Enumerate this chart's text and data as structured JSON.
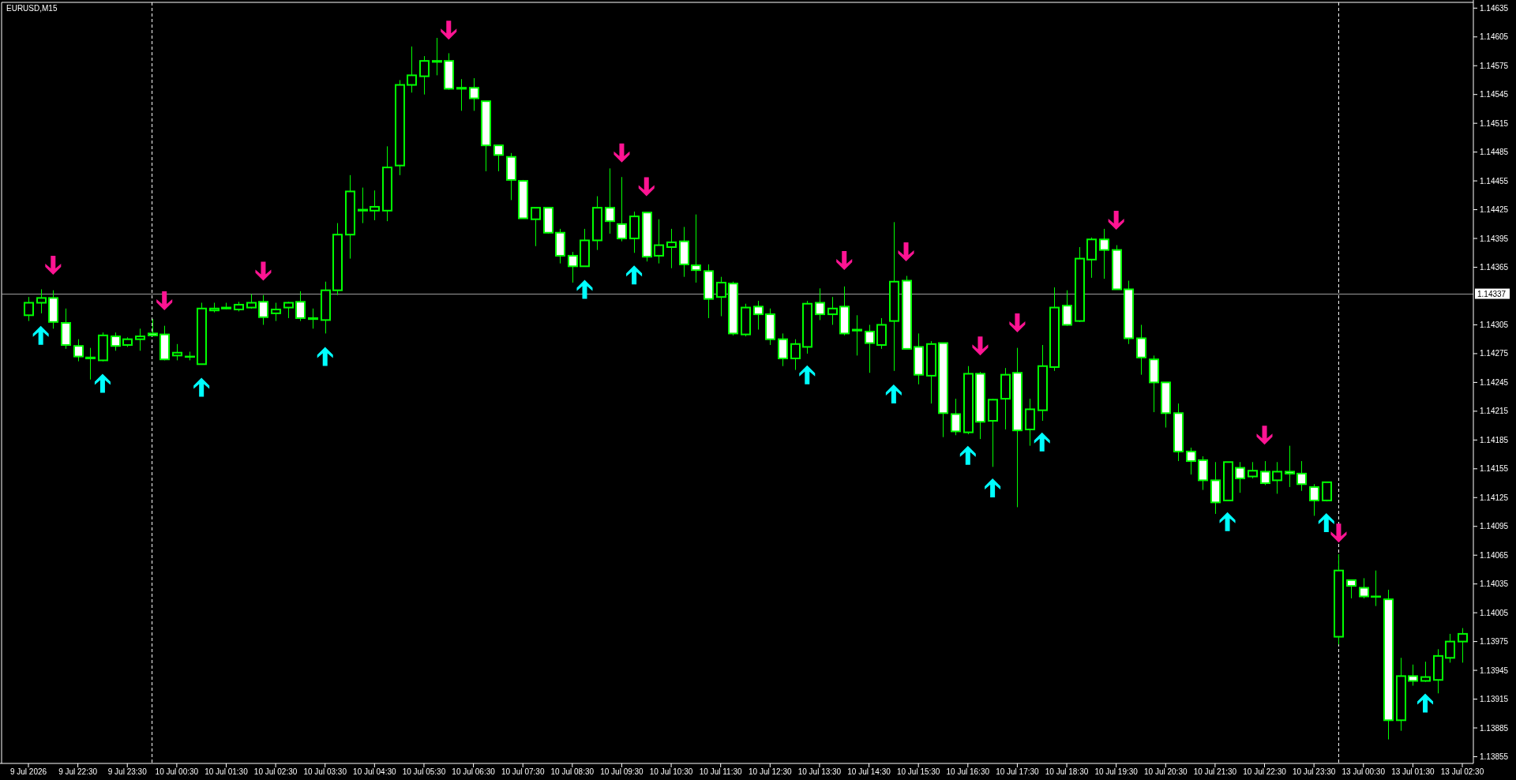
{
  "chart_data": {
    "type": "candlestick",
    "title": "EURUSD,M15",
    "color": "#00ff00",
    "categories": [
      "9 Jul 2026",
      null,
      null,
      null,
      "9 Jul 22:30",
      null,
      null,
      null,
      "9 Jul 23:30",
      null,
      null,
      null,
      "10 Jul 00:30",
      null,
      null,
      null,
      "10 Jul 01:30",
      null,
      null,
      null,
      "10 Jul 02:30",
      null,
      null,
      null,
      "10 Jul 03:30",
      null,
      null,
      null,
      "10 Jul 04:30",
      null,
      null,
      null,
      "10 Jul 05:30",
      null,
      null,
      null,
      "10 Jul 06:30",
      null,
      null,
      null,
      "10 Jul 07:30",
      null,
      null,
      null,
      "10 Jul 08:30",
      null,
      null,
      null,
      "10 Jul 09:30",
      null,
      null,
      null,
      "10 Jul 10:30",
      null,
      null,
      null,
      "10 Jul 11:30",
      null,
      null,
      null,
      "10 Jul 12:30",
      null,
      null,
      null,
      "10 Jul 13:30",
      null,
      null,
      null,
      "10 Jul 14:30",
      null,
      null,
      null,
      "10 Jul 15:30",
      null,
      null,
      null,
      "10 Jul 16:30",
      null,
      null,
      null,
      "10 Jul 17:30",
      null,
      null,
      null,
      "10 Jul 18:30",
      null,
      null,
      null,
      "10 Jul 19:30",
      null,
      null,
      null,
      "10 Jul 20:30",
      null,
      null,
      null,
      "10 Jul 21:30",
      null,
      null,
      null,
      "10 Jul 22:30",
      null,
      null,
      null,
      "10 Jul 23:30",
      null,
      null,
      null,
      "13 Jul 00:30",
      null,
      null,
      null,
      "13 Jul 01:30",
      null,
      null,
      null,
      "13 Jul 02:30"
    ],
    "ohlc": [
      [
        1.14315,
        1.14334,
        1.14309,
        1.14328
      ],
      [
        1.14328,
        1.14342,
        1.14317,
        1.14333
      ],
      [
        1.14333,
        1.14341,
        1.14301,
        1.14308
      ],
      [
        1.14307,
        1.14322,
        1.1428,
        1.14284
      ],
      [
        1.14283,
        1.1429,
        1.14267,
        1.14272
      ],
      [
        1.14271,
        1.14281,
        1.14248,
        1.1427
      ],
      [
        1.14268,
        1.14297,
        1.14267,
        1.14294
      ],
      [
        1.14293,
        1.14297,
        1.14278,
        1.14283
      ],
      [
        1.14284,
        1.14292,
        1.14282,
        1.1429
      ],
      [
        1.1429,
        1.14301,
        1.14278,
        1.14293
      ],
      [
        1.14296,
        1.14311,
        1.14294,
        1.14294
      ],
      [
        1.14295,
        1.14304,
        1.14268,
        1.14269
      ],
      [
        1.14273,
        1.14285,
        1.14268,
        1.14276
      ],
      [
        1.14272,
        1.14277,
        1.14268,
        1.14272
      ],
      [
        1.14264,
        1.14328,
        1.14264,
        1.14322
      ],
      [
        1.1432,
        1.14328,
        1.14318,
        1.14322
      ],
      [
        1.14322,
        1.14328,
        1.14321,
        1.14323
      ],
      [
        1.14321,
        1.14329,
        1.14319,
        1.14326
      ],
      [
        1.14323,
        1.14337,
        1.14322,
        1.14328
      ],
      [
        1.14329,
        1.14336,
        1.14305,
        1.14313
      ],
      [
        1.14317,
        1.14328,
        1.14309,
        1.14321
      ],
      [
        1.14323,
        1.14329,
        1.14312,
        1.14328
      ],
      [
        1.14329,
        1.1434,
        1.14309,
        1.14312
      ],
      [
        1.14312,
        1.14322,
        1.14301,
        1.14311
      ],
      [
        1.1431,
        1.1435,
        1.14296,
        1.14341
      ],
      [
        1.14341,
        1.14411,
        1.14336,
        1.14399
      ],
      [
        1.14399,
        1.14461,
        1.14374,
        1.14444
      ],
      [
        1.14424,
        1.14448,
        1.14411,
        1.14425
      ],
      [
        1.14424,
        1.14445,
        1.14414,
        1.14428
      ],
      [
        1.14424,
        1.14491,
        1.14413,
        1.14469
      ],
      [
        1.14471,
        1.1456,
        1.14461,
        1.14555
      ],
      [
        1.14555,
        1.14595,
        1.14547,
        1.14565
      ],
      [
        1.14564,
        1.14585,
        1.14545,
        1.1458
      ],
      [
        1.14579,
        1.14604,
        1.14565,
        1.1458
      ],
      [
        1.1458,
        1.14588,
        1.1455,
        1.14551
      ],
      [
        1.14552,
        1.14561,
        1.14528,
        1.14551
      ],
      [
        1.14552,
        1.14562,
        1.14528,
        1.14541
      ],
      [
        1.14538,
        1.14538,
        1.14465,
        1.14492
      ],
      [
        1.14492,
        1.14492,
        1.14465,
        1.14482
      ],
      [
        1.1448,
        1.14484,
        1.14435,
        1.14456
      ],
      [
        1.14455,
        1.14456,
        1.14416,
        1.14416
      ],
      [
        1.14415,
        1.14427,
        1.14387,
        1.14427
      ],
      [
        1.14427,
        1.14427,
        1.144,
        1.14401
      ],
      [
        1.14401,
        1.14405,
        1.14369,
        1.14377
      ],
      [
        1.14377,
        1.14381,
        1.14349,
        1.14366
      ],
      [
        1.14366,
        1.14405,
        1.14366,
        1.14393
      ],
      [
        1.14393,
        1.14439,
        1.14383,
        1.14427
      ],
      [
        1.14427,
        1.14468,
        1.144,
        1.14413
      ],
      [
        1.1441,
        1.14459,
        1.14392,
        1.14395
      ],
      [
        1.14395,
        1.14423,
        1.1438,
        1.14418
      ],
      [
        1.14422,
        1.14422,
        1.14371,
        1.14376
      ],
      [
        1.14377,
        1.14415,
        1.14369,
        1.14388
      ],
      [
        1.14386,
        1.14405,
        1.14364,
        1.14391
      ],
      [
        1.14392,
        1.14407,
        1.14355,
        1.14368
      ],
      [
        1.14367,
        1.1442,
        1.14349,
        1.14362
      ],
      [
        1.14361,
        1.14368,
        1.14312,
        1.14332
      ],
      [
        1.14334,
        1.14355,
        1.14314,
        1.14349
      ],
      [
        1.14348,
        1.1435,
        1.14294,
        1.14296
      ],
      [
        1.14295,
        1.14327,
        1.14293,
        1.14323
      ],
      [
        1.14324,
        1.1433,
        1.143,
        1.14316
      ],
      [
        1.14316,
        1.14322,
        1.14284,
        1.1429
      ],
      [
        1.1429,
        1.14296,
        1.14262,
        1.1427
      ],
      [
        1.1427,
        1.1429,
        1.14258,
        1.14285
      ],
      [
        1.14282,
        1.1433,
        1.14275,
        1.14327
      ],
      [
        1.14328,
        1.14343,
        1.1431,
        1.14316
      ],
      [
        1.14316,
        1.14334,
        1.14305,
        1.14322
      ],
      [
        1.14324,
        1.14345,
        1.14294,
        1.14296
      ],
      [
        1.14299,
        1.14315,
        1.14273,
        1.143
      ],
      [
        1.14298,
        1.14305,
        1.14255,
        1.14286
      ],
      [
        1.14284,
        1.14312,
        1.1428,
        1.14305
      ],
      [
        1.14309,
        1.14412,
        1.14257,
        1.1435
      ],
      [
        1.14351,
        1.14356,
        1.1428,
        1.1428
      ],
      [
        1.14282,
        1.14296,
        1.14243,
        1.14253
      ],
      [
        1.14252,
        1.14288,
        1.14223,
        1.14285
      ],
      [
        1.14286,
        1.14286,
        1.14188,
        1.14213
      ],
      [
        1.14212,
        1.14228,
        1.1419,
        1.14194
      ],
      [
        1.14193,
        1.14262,
        1.14191,
        1.14254
      ],
      [
        1.14254,
        1.14256,
        1.14186,
        1.14204
      ],
      [
        1.14205,
        1.14228,
        1.14157,
        1.14227
      ],
      [
        1.14228,
        1.1426,
        1.14196,
        1.14253
      ],
      [
        1.14255,
        1.14281,
        1.14115,
        1.14195
      ],
      [
        1.14196,
        1.14228,
        1.14179,
        1.14217
      ],
      [
        1.14216,
        1.14284,
        1.14205,
        1.14262
      ],
      [
        1.14261,
        1.14344,
        1.14257,
        1.14323
      ],
      [
        1.14325,
        1.14341,
        1.14304,
        1.14305
      ],
      [
        1.14309,
        1.14386,
        1.14308,
        1.14374
      ],
      [
        1.14373,
        1.14396,
        1.14354,
        1.14394
      ],
      [
        1.14394,
        1.14405,
        1.14353,
        1.14383
      ],
      [
        1.14383,
        1.14388,
        1.14342,
        1.14342
      ],
      [
        1.14342,
        1.14351,
        1.14285,
        1.14291
      ],
      [
        1.14291,
        1.14305,
        1.14253,
        1.14271
      ],
      [
        1.14269,
        1.14273,
        1.14214,
        1.14245
      ],
      [
        1.14245,
        1.14245,
        1.14198,
        1.14213
      ],
      [
        1.14213,
        1.14223,
        1.14163,
        1.14173
      ],
      [
        1.14173,
        1.14177,
        1.14149,
        1.14163
      ],
      [
        1.14164,
        1.14168,
        1.14133,
        1.14143
      ],
      [
        1.14143,
        1.14162,
        1.14108,
        1.1412
      ],
      [
        1.14122,
        1.14162,
        1.14122,
        1.14162
      ],
      [
        1.14156,
        1.14162,
        1.1413,
        1.14145
      ],
      [
        1.14147,
        1.14162,
        1.14145,
        1.14153
      ],
      [
        1.14152,
        1.14163,
        1.14138,
        1.1414
      ],
      [
        1.14143,
        1.14162,
        1.14129,
        1.14152
      ],
      [
        1.14152,
        1.14179,
        1.14136,
        1.1415
      ],
      [
        1.1415,
        1.14163,
        1.14132,
        1.14139
      ],
      [
        1.14136,
        1.14139,
        1.14106,
        1.14122
      ],
      [
        1.14122,
        1.14141,
        1.14121,
        1.14141
      ],
      [
        1.1398,
        1.14066,
        1.13972,
        1.14049
      ],
      [
        1.14039,
        1.14039,
        1.1402,
        1.14033
      ],
      [
        1.14031,
        1.14041,
        1.1402,
        1.14022
      ],
      [
        1.14022,
        1.14049,
        1.14012,
        1.14022
      ],
      [
        1.14019,
        1.14029,
        1.13873,
        1.13893
      ],
      [
        1.13893,
        1.13958,
        1.13882,
        1.13939
      ],
      [
        1.13939,
        1.13951,
        1.13929,
        1.13934
      ],
      [
        1.13934,
        1.13954,
        1.13933,
        1.13938
      ],
      [
        1.13935,
        1.13967,
        1.13921,
        1.1396
      ],
      [
        1.13958,
        1.13983,
        1.13953,
        1.13975
      ],
      [
        1.13975,
        1.13989,
        1.13953,
        1.13983
      ]
    ],
    "series": [
      {
        "type": "scatter",
        "color": "#00ffff",
        "values": [
          null,
          1.14294,
          null,
          null,
          null,
          null,
          1.14244,
          null,
          null,
          null,
          null,
          null,
          null,
          null,
          1.1424,
          null,
          null,
          null,
          null,
          null,
          null,
          null,
          null,
          null,
          1.14272,
          null,
          null,
          null,
          null,
          null,
          null,
          null,
          null,
          null,
          null,
          null,
          null,
          null,
          null,
          null,
          null,
          null,
          null,
          null,
          null,
          1.14342,
          null,
          null,
          null,
          1.14357,
          null,
          null,
          null,
          null,
          null,
          null,
          null,
          null,
          null,
          null,
          null,
          null,
          null,
          1.14253,
          null,
          null,
          null,
          null,
          null,
          null,
          1.14233,
          null,
          null,
          null,
          null,
          null,
          1.14169,
          null,
          1.14135,
          null,
          null,
          null,
          1.14183,
          null,
          null,
          null,
          null,
          null,
          null,
          null,
          null,
          null,
          null,
          null,
          null,
          null,
          null,
          1.141,
          null,
          null,
          null,
          null,
          null,
          null,
          null,
          1.14099,
          null,
          null,
          null,
          null,
          null,
          null,
          null,
          1.13911,
          null,
          null,
          null
        ]
      },
      {
        "type": "scatter",
        "color": "#ff1493",
        "values": [
          null,
          null,
          1.14367,
          null,
          null,
          null,
          null,
          null,
          null,
          null,
          null,
          1.1433,
          null,
          null,
          null,
          null,
          null,
          null,
          null,
          1.14361,
          null,
          null,
          null,
          null,
          null,
          null,
          null,
          null,
          null,
          null,
          null,
          null,
          null,
          null,
          1.14612,
          null,
          null,
          null,
          null,
          null,
          null,
          null,
          null,
          null,
          null,
          null,
          null,
          null,
          1.14484,
          null,
          1.14449,
          null,
          null,
          null,
          null,
          null,
          null,
          null,
          null,
          null,
          null,
          null,
          null,
          null,
          null,
          null,
          1.14372,
          null,
          null,
          null,
          null,
          1.14381,
          null,
          null,
          null,
          null,
          null,
          1.14283,
          null,
          null,
          1.14307,
          null,
          null,
          null,
          null,
          null,
          null,
          null,
          1.14414,
          null,
          null,
          null,
          null,
          null,
          null,
          null,
          null,
          null,
          null,
          null,
          1.1419,
          null,
          null,
          null,
          null,
          null,
          1.14088,
          null,
          null,
          null,
          null,
          null,
          null,
          null,
          null,
          null,
          null
        ]
      }
    ],
    "ylim": [
      1.13848,
      1.14641
    ],
    "yticks": [
      1.14635,
      1.14605,
      1.14575,
      1.14545,
      1.14515,
      1.14485,
      1.14455,
      1.14425,
      1.14395,
      1.14365,
      1.14305,
      1.14275,
      1.14245,
      1.14215,
      1.14185,
      1.14155,
      1.14125,
      1.14095,
      1.14065,
      1.14035,
      1.14005,
      1.13975,
      1.13945,
      1.13915,
      1.13885,
      1.13855
    ],
    "ref_lines": [
      {
        "axis": "y",
        "value": 1.14337,
        "label": "1.14337",
        "color": "#a0a0a0",
        "line_style": "solid"
      }
    ]
  }
}
